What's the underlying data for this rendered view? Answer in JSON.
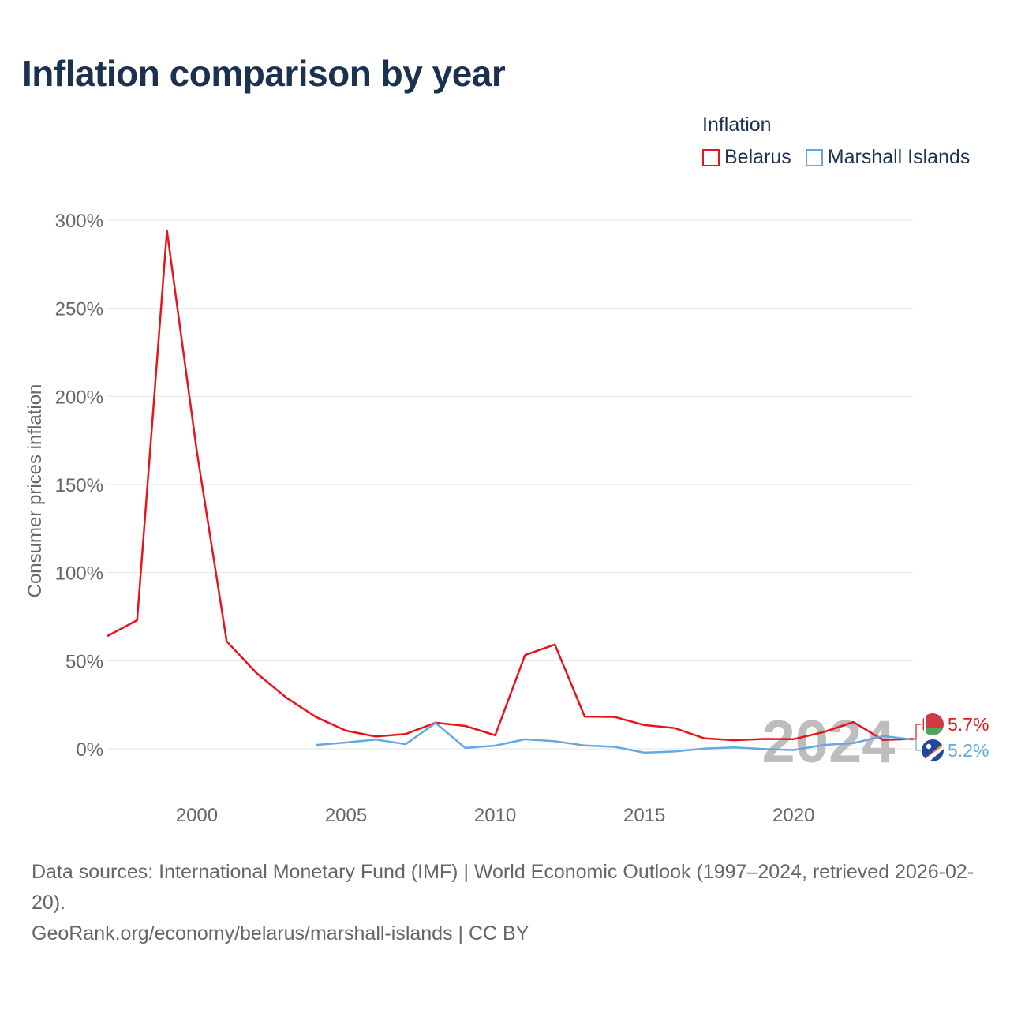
{
  "header": {
    "title": "Inflation comparison by year"
  },
  "legend": {
    "title": "Inflation",
    "items": [
      {
        "label": "Belarus",
        "color": "#e8141c"
      },
      {
        "label": "Marshall Islands",
        "color": "#62a8e5"
      }
    ]
  },
  "year_watermark": "2024",
  "footer": {
    "sources": "Data sources: International Monetary Fund (IMF) | World Economic Outlook (1997–2024, retrieved 2026-02-20).",
    "credit": "GeoRank.org/economy/belarus/marshall-islands | CC BY"
  },
  "chart_data": {
    "type": "line",
    "title": "Inflation comparison by year",
    "xlabel": "",
    "ylabel": "Consumer prices inflation",
    "xlim": [
      1997,
      2024
    ],
    "ylim": [
      -20,
      305
    ],
    "x_ticks": [
      2000,
      2005,
      2010,
      2015,
      2020
    ],
    "y_ticks": [
      0,
      50,
      100,
      150,
      200,
      250,
      300
    ],
    "y_tick_labels": [
      "0%",
      "50%",
      "100%",
      "150%",
      "200%",
      "250%",
      "300%"
    ],
    "grid": true,
    "legend_position": "top-right",
    "series": [
      {
        "name": "Belarus",
        "color": "#e8141c",
        "end_label": "5.7%",
        "x": [
          1997,
          1998,
          1999,
          2000,
          2001,
          2002,
          2003,
          2004,
          2005,
          2006,
          2007,
          2008,
          2009,
          2010,
          2011,
          2012,
          2013,
          2014,
          2015,
          2016,
          2017,
          2018,
          2019,
          2020,
          2021,
          2022,
          2023,
          2024
        ],
        "y": [
          64,
          73,
          294,
          169,
          61,
          43,
          29,
          18,
          10.3,
          7,
          8.4,
          14.8,
          13,
          7.7,
          53.2,
          59.2,
          18.3,
          18.1,
          13.5,
          11.8,
          6,
          4.9,
          5.6,
          5.5,
          9.5,
          15.2,
          5,
          5.7
        ]
      },
      {
        "name": "Marshall Islands",
        "color": "#62a8e5",
        "end_label": "5.2%",
        "x": [
          2004,
          2005,
          2006,
          2007,
          2008,
          2009,
          2010,
          2011,
          2012,
          2013,
          2014,
          2015,
          2016,
          2017,
          2018,
          2019,
          2020,
          2021,
          2022,
          2023,
          2024
        ],
        "y": [
          2.2,
          3.6,
          5.3,
          2.6,
          14.7,
          0.5,
          1.8,
          5.4,
          4.3,
          1.9,
          1.1,
          -2.2,
          -1.5,
          0.1,
          0.8,
          -0.1,
          -0.7,
          2.2,
          3.2,
          7.3,
          5.2
        ]
      }
    ]
  }
}
